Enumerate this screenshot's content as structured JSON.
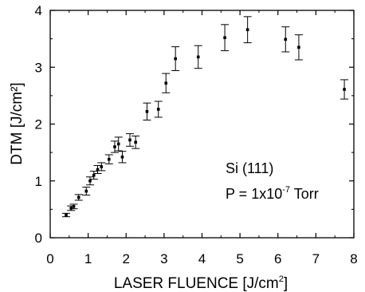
{
  "chart_data": {
    "type": "scatter",
    "xlabel": "LASER FLUENCE [J/cm",
    "xlabel_sup": "2",
    "xlabel_end": "]",
    "ylabel": "DTM [J/cm²]",
    "xlim": [
      0,
      8
    ],
    "ylim": [
      0,
      4
    ],
    "x_ticks": [
      "0",
      "1",
      "2",
      "3",
      "4",
      "5",
      "6",
      "7",
      "8"
    ],
    "y_ticks": [
      "0",
      "1",
      "2",
      "3",
      "4"
    ],
    "annotations": {
      "line1": "Si (111)",
      "line2_pre": "P = 1x10",
      "line2_sup": "-7",
      "line2_post": " Torr"
    },
    "marker": "square",
    "error_bars": true,
    "grid": false,
    "points": [
      {
        "x": 0.42,
        "y": 0.4,
        "err": 0.03
      },
      {
        "x": 0.55,
        "y": 0.52,
        "err": 0.04
      },
      {
        "x": 0.62,
        "y": 0.55,
        "err": 0.04
      },
      {
        "x": 0.75,
        "y": 0.71,
        "err": 0.05
      },
      {
        "x": 0.95,
        "y": 0.82,
        "err": 0.07
      },
      {
        "x": 1.05,
        "y": 1.0,
        "err": 0.07
      },
      {
        "x": 1.15,
        "y": 1.1,
        "err": 0.07
      },
      {
        "x": 1.25,
        "y": 1.2,
        "err": 0.07
      },
      {
        "x": 1.35,
        "y": 1.25,
        "err": 0.07
      },
      {
        "x": 1.55,
        "y": 1.38,
        "err": 0.08
      },
      {
        "x": 1.7,
        "y": 1.6,
        "err": 0.1
      },
      {
        "x": 1.8,
        "y": 1.65,
        "err": 0.12
      },
      {
        "x": 1.9,
        "y": 1.42,
        "err": 0.1
      },
      {
        "x": 2.1,
        "y": 1.72,
        "err": 0.11
      },
      {
        "x": 2.25,
        "y": 1.68,
        "err": 0.11
      },
      {
        "x": 2.55,
        "y": 2.22,
        "err": 0.15
      },
      {
        "x": 2.85,
        "y": 2.26,
        "err": 0.14
      },
      {
        "x": 3.05,
        "y": 2.72,
        "err": 0.17
      },
      {
        "x": 3.3,
        "y": 3.15,
        "err": 0.21
      },
      {
        "x": 3.9,
        "y": 3.18,
        "err": 0.2
      },
      {
        "x": 4.6,
        "y": 3.52,
        "err": 0.23
      },
      {
        "x": 5.2,
        "y": 3.66,
        "err": 0.23
      },
      {
        "x": 6.2,
        "y": 3.49,
        "err": 0.22
      },
      {
        "x": 6.55,
        "y": 3.35,
        "err": 0.22
      },
      {
        "x": 7.75,
        "y": 2.61,
        "err": 0.17
      }
    ]
  }
}
